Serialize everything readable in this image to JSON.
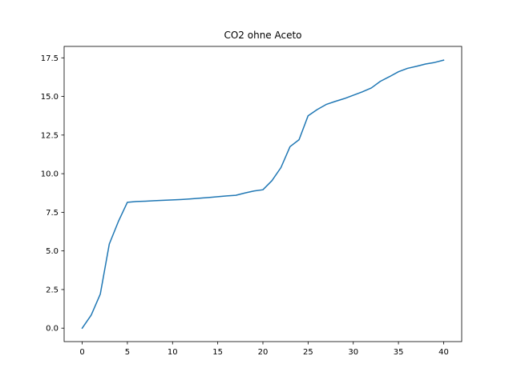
{
  "chart_data": {
    "type": "line",
    "title": "CO2 ohne Aceto",
    "xlabel": "",
    "ylabel": "",
    "xlim": [
      -2,
      42
    ],
    "ylim": [
      -0.87,
      18.24
    ],
    "grid": false,
    "x_ticks": [
      0,
      5,
      10,
      15,
      20,
      25,
      30,
      35,
      40
    ],
    "x_tick_labels": [
      "0",
      "5",
      "10",
      "15",
      "20",
      "25",
      "30",
      "35",
      "40"
    ],
    "y_ticks": [
      0,
      2.5,
      5,
      7.5,
      10,
      12.5,
      15,
      17.5
    ],
    "y_tick_labels": [
      "0.0",
      "2.5",
      "5.0",
      "7.5",
      "10.0",
      "12.5",
      "15.0",
      "17.5"
    ],
    "series": [
      {
        "color": "#1f77b4",
        "x": [
          0,
          1,
          2,
          3,
          4,
          5,
          6,
          7,
          8,
          9,
          10,
          11,
          12,
          13,
          14,
          15,
          16,
          17,
          18,
          19,
          20,
          21,
          22,
          23,
          24,
          25,
          26,
          27,
          28,
          29,
          30,
          31,
          32,
          33,
          34,
          35,
          36,
          37,
          38,
          39,
          40
        ],
        "y": [
          0,
          0.85,
          2.2,
          5.45,
          6.9,
          8.15,
          8.2,
          8.22,
          8.25,
          8.28,
          8.3,
          8.33,
          8.37,
          8.41,
          8.46,
          8.51,
          8.56,
          8.6,
          8.75,
          8.88,
          8.96,
          9.55,
          10.4,
          11.75,
          12.2,
          13.75,
          14.15,
          14.48,
          14.68,
          14.86,
          15.08,
          15.3,
          15.55,
          15.98,
          16.28,
          16.6,
          16.82,
          16.95,
          17.1,
          17.2,
          17.35
        ]
      }
    ]
  }
}
